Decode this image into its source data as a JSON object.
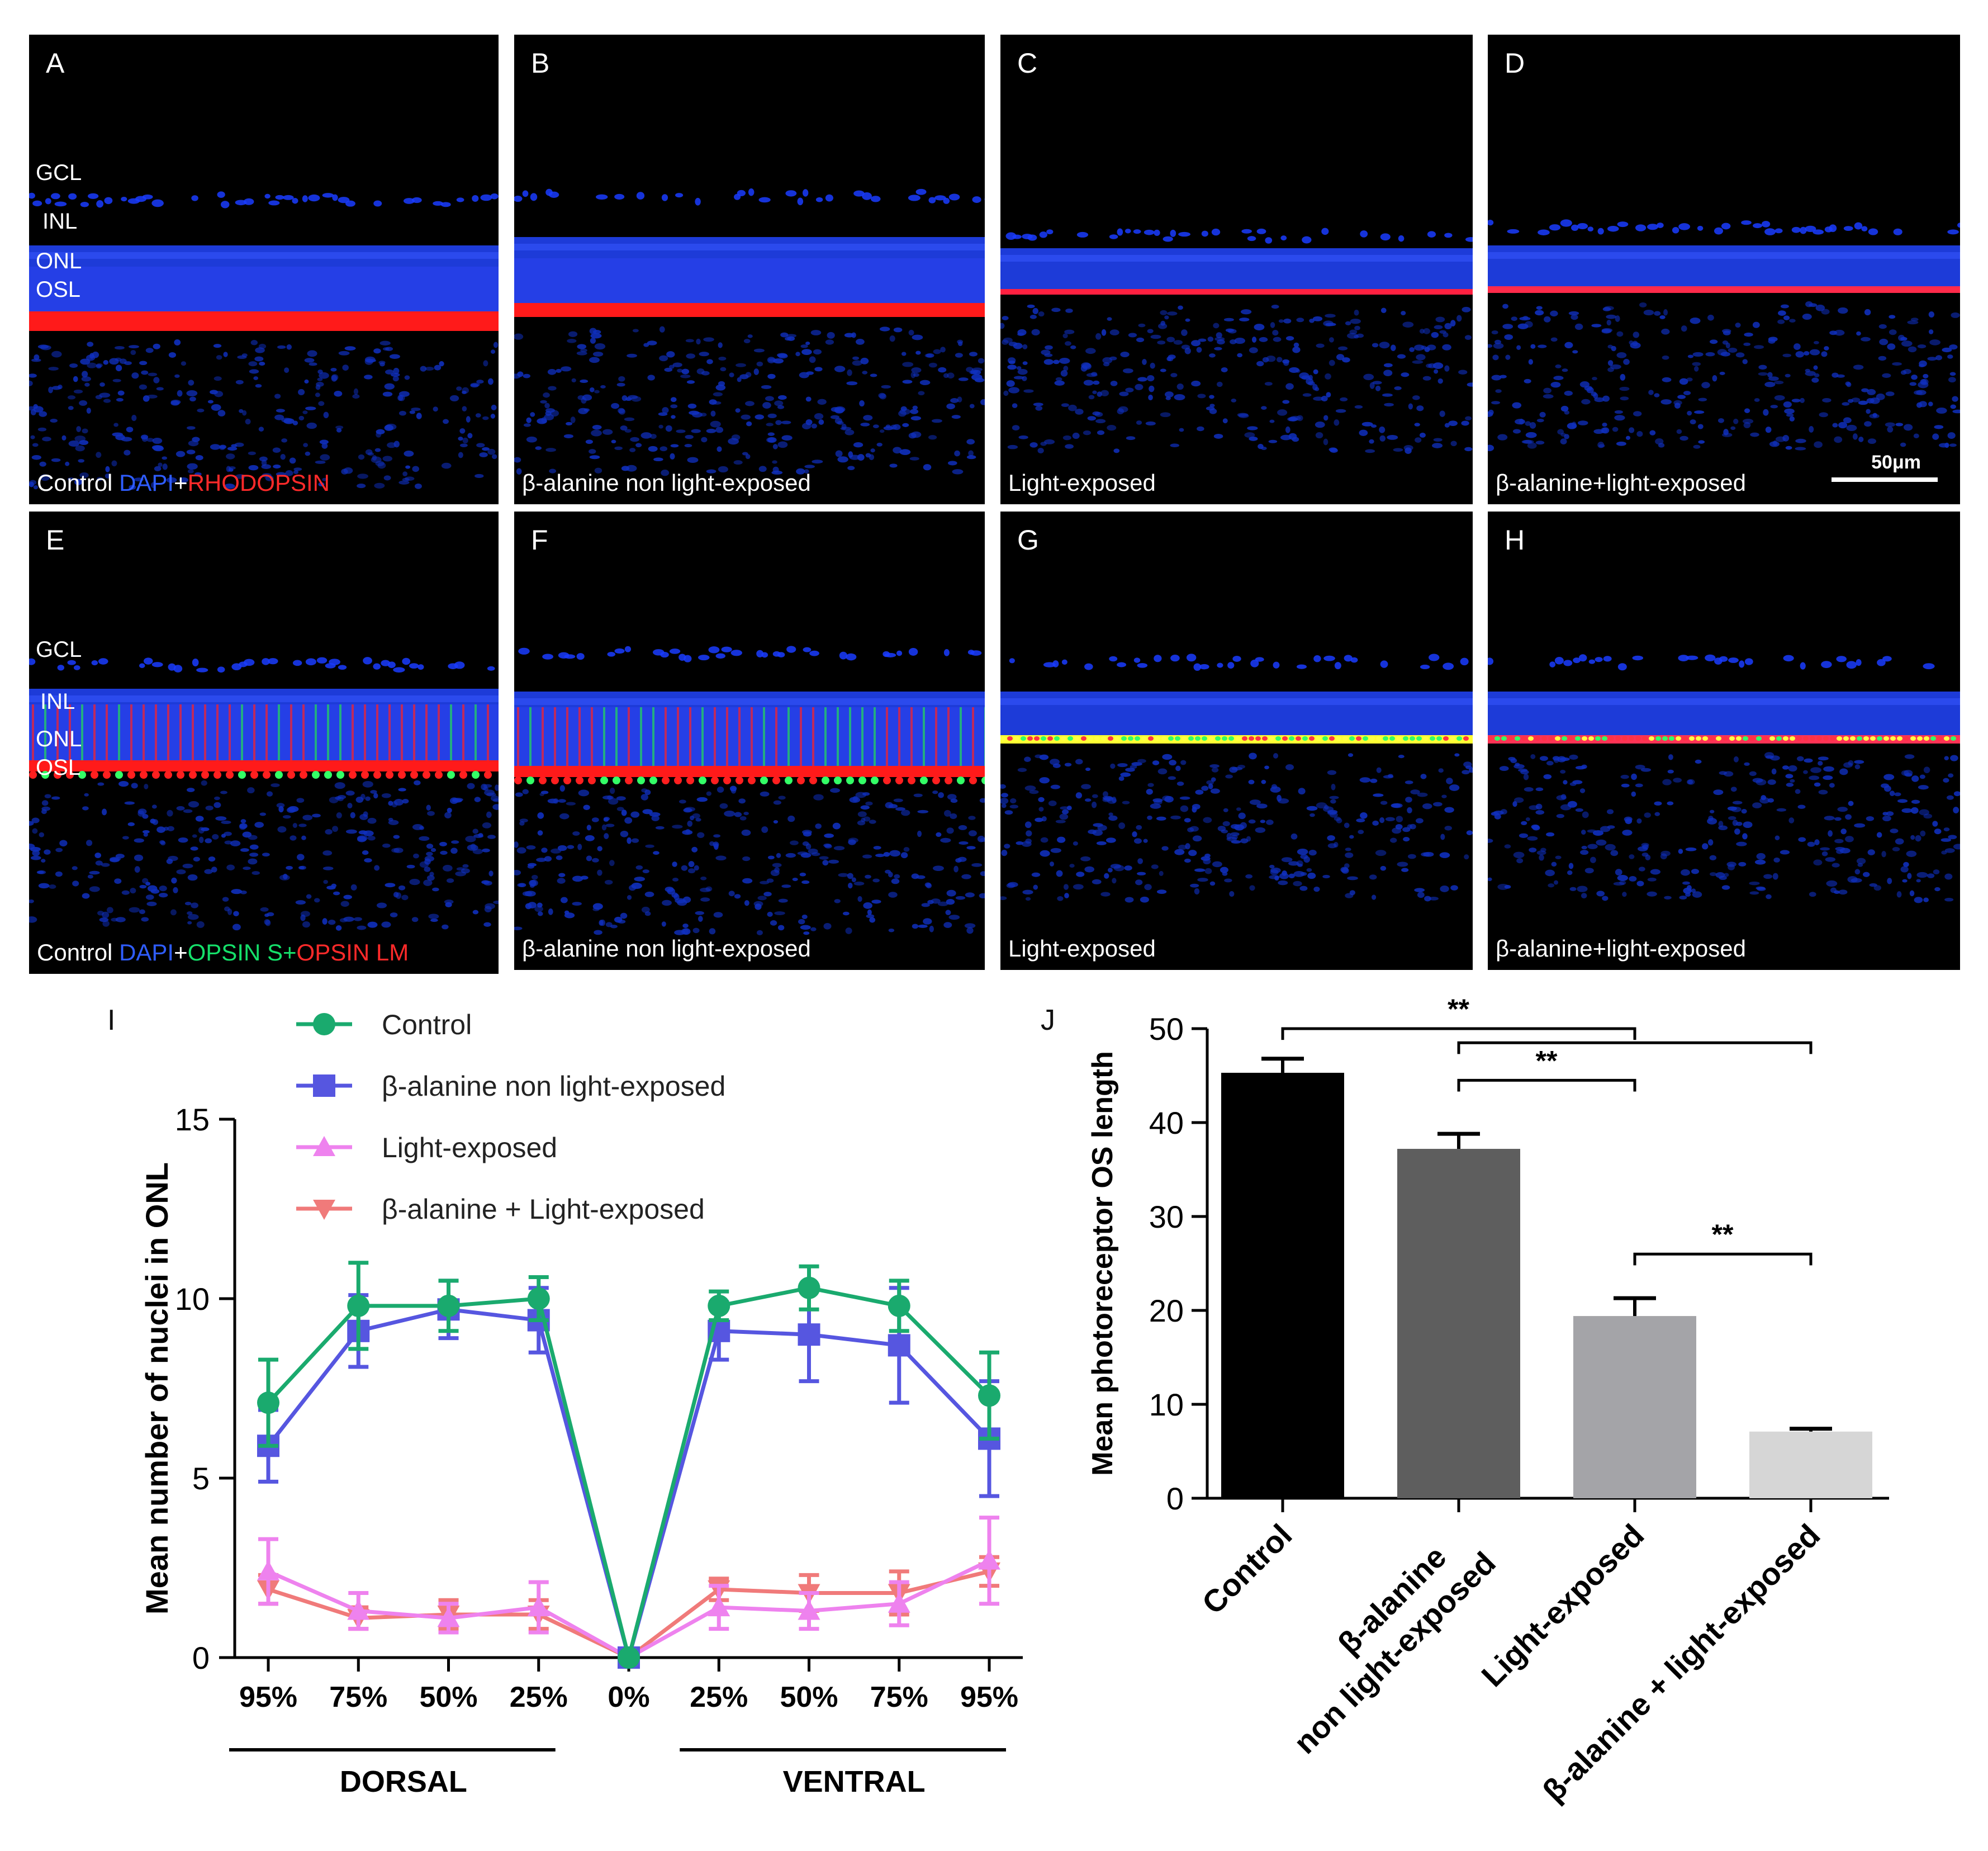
{
  "panels": [
    {
      "letter": "A",
      "caption": "Control ",
      "stain": [
        [
          "DAPI",
          "blue"
        ],
        [
          "+",
          ""
        ],
        [
          "RHODOPSIN",
          "red"
        ]
      ],
      "layers": [
        "GCL",
        "INL",
        "ONL",
        "OSL"
      ]
    },
    {
      "letter": "B",
      "caption": "β-alanine non light-exposed"
    },
    {
      "letter": "C",
      "caption": "Light-exposed"
    },
    {
      "letter": "D",
      "caption": "β-alanine+light-exposed",
      "scale_bar": "50μm"
    },
    {
      "letter": "E",
      "caption": "Control ",
      "stain": [
        [
          "DAPI",
          "blue"
        ],
        [
          "+",
          ""
        ],
        [
          "OPSIN S",
          "green"
        ],
        [
          "+",
          ""
        ],
        [
          "OPSIN LM",
          "red"
        ]
      ],
      "layers": [
        "GCL",
        "INL",
        "ONL",
        "OSL"
      ]
    },
    {
      "letter": "F",
      "caption": "β-alanine non light-exposed"
    },
    {
      "letter": "G",
      "caption": "Light-exposed"
    },
    {
      "letter": "H",
      "caption": "β-alanine+light-exposed"
    }
  ],
  "colors": {
    "control": "#1aaa6e",
    "balanine": "#5656e0",
    "light": "#ee82ee",
    "combo": "#f07a7a"
  },
  "chart_data": [
    {
      "panel": "I",
      "type": "line",
      "ylabel": "Mean number of nuclei in ONL",
      "ylim": [
        0,
        15
      ],
      "yticks": [
        0,
        5,
        10,
        15
      ],
      "categories": [
        "95%",
        "75%",
        "50%",
        "25%",
        "0%",
        "25%",
        "50%",
        "75%",
        "95%"
      ],
      "groups": [
        {
          "label": "DORSAL",
          "from": 0,
          "to": 3
        },
        {
          "label": "VENTRAL",
          "from": 5,
          "to": 8
        }
      ],
      "series": [
        {
          "name": "Control",
          "marker": "circle",
          "color": "#1aaa6e",
          "values": [
            7.1,
            9.8,
            9.8,
            10.0,
            0,
            9.8,
            10.3,
            9.8,
            7.3
          ],
          "err": [
            1.2,
            1.2,
            0.7,
            0.6,
            0,
            0.4,
            0.6,
            0.7,
            1.2
          ]
        },
        {
          "name": "β-alanine non light-exposed",
          "marker": "square",
          "color": "#5656e0",
          "values": [
            5.9,
            9.1,
            9.7,
            9.4,
            0,
            9.1,
            9.0,
            8.7,
            6.1
          ],
          "err": [
            1.0,
            1.0,
            0.8,
            0.9,
            0,
            0.8,
            1.3,
            1.6,
            1.6
          ]
        },
        {
          "name": "Light-exposed",
          "marker": "triangle-up",
          "color": "#ee82ee",
          "values": [
            2.4,
            1.3,
            1.1,
            1.4,
            0,
            1.4,
            1.3,
            1.5,
            2.7
          ],
          "err": [
            0.9,
            0.5,
            0.4,
            0.7,
            0,
            0.6,
            0.5,
            0.6,
            1.2
          ]
        },
        {
          "name": "β-alanine + Light-exposed",
          "marker": "triangle-down",
          "color": "#f07a7a",
          "values": [
            1.9,
            1.1,
            1.2,
            1.2,
            0,
            1.9,
            1.8,
            1.8,
            2.4
          ],
          "err": [
            0.4,
            0.3,
            0.4,
            0.4,
            0,
            0.3,
            0.5,
            0.6,
            0.4
          ]
        }
      ]
    },
    {
      "panel": "J",
      "type": "bar",
      "ylabel": "Mean photoreceptor OS length",
      "ylim": [
        0,
        50
      ],
      "yticks": [
        0,
        10,
        20,
        30,
        40,
        50
      ],
      "categories": [
        "Control",
        "β-alanine\nnon light-exposed",
        "Light-exposed",
        "β-alanine + light-exposed"
      ],
      "values": [
        45.3,
        37.2,
        19.4,
        7.1
      ],
      "err": [
        1.5,
        1.6,
        1.9,
        0.3
      ],
      "bar_colors": [
        "#000000",
        "#5e5e5e",
        "#a4a4a8",
        "#d6d6d6"
      ],
      "significance": [
        {
          "from": 0,
          "to": 2,
          "label": "**",
          "level": 50
        },
        {
          "from": 1,
          "to": 3,
          "label": "",
          "level": 48.5
        },
        {
          "from": 1,
          "to": 2,
          "label": "**",
          "level": 44.5
        },
        {
          "from": 2,
          "to": 3,
          "label": "**",
          "level": 26
        }
      ]
    }
  ]
}
